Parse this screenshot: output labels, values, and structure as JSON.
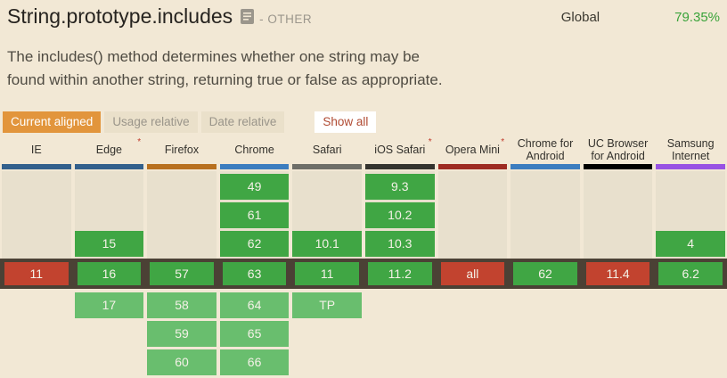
{
  "header": {
    "title": "String.prototype.includes",
    "category": "- OTHER",
    "global_label": "Global",
    "global_value": "79.35%"
  },
  "description": {
    "line1": "The includes() method determines whether one string may be",
    "line2": "found within another string, returning true or false as appropriate."
  },
  "toolbar": {
    "buttons": [
      {
        "label": "Current aligned",
        "active": true
      },
      {
        "label": "Usage relative",
        "active": false
      },
      {
        "label": "Date relative",
        "active": false
      }
    ],
    "show_all": "Show all"
  },
  "table": {
    "colors": {
      "supported": "#40a644",
      "unsupported": "#c2432f",
      "future": "#69be6e",
      "current_band": "#4b4135",
      "column_track": "#e8e0cd"
    },
    "columns": [
      {
        "name": "IE",
        "asterisk": false,
        "brand_color": "#33608c",
        "past": [
          null,
          null,
          null
        ],
        "current": {
          "label": "11",
          "status": "unsupported"
        },
        "future": [
          null,
          null,
          null
        ]
      },
      {
        "name": "Edge",
        "asterisk": true,
        "brand_color": "#33608c",
        "past": [
          null,
          null,
          "15"
        ],
        "current": {
          "label": "16",
          "status": "supported"
        },
        "future": [
          "17",
          null,
          null
        ]
      },
      {
        "name": "Firefox",
        "asterisk": false,
        "brand_color": "#b8701f",
        "past": [
          null,
          null,
          null
        ],
        "current": {
          "label": "57",
          "status": "supported"
        },
        "future": [
          "58",
          "59",
          "60"
        ]
      },
      {
        "name": "Chrome",
        "asterisk": false,
        "brand_color": "#3c7dbf",
        "past": [
          "49",
          "61",
          "62"
        ],
        "current": {
          "label": "63",
          "status": "supported"
        },
        "future": [
          "64",
          "65",
          "66"
        ]
      },
      {
        "name": "Safari",
        "asterisk": false,
        "brand_color": "#6e6e68",
        "past": [
          null,
          null,
          "10.1"
        ],
        "current": {
          "label": "11",
          "status": "supported"
        },
        "future": [
          "TP",
          null,
          null
        ]
      },
      {
        "name": "iOS Safari",
        "asterisk": true,
        "brand_color": "#34332e",
        "past": [
          "9.3",
          "10.2",
          "10.3"
        ],
        "current": {
          "label": "11.2",
          "status": "supported"
        },
        "future": [
          null,
          null,
          null
        ]
      },
      {
        "name": "Opera Mini",
        "asterisk": true,
        "brand_color": "#9e2b22",
        "past": [
          null,
          null,
          null
        ],
        "current": {
          "label": "all",
          "status": "unsupported"
        },
        "future": [
          null,
          null,
          null
        ]
      },
      {
        "name": "Chrome for Android",
        "asterisk": false,
        "brand_color": "#3c7dbf",
        "past": [
          null,
          null,
          null
        ],
        "current": {
          "label": "62",
          "status": "supported"
        },
        "future": [
          null,
          null,
          null
        ]
      },
      {
        "name": "UC Browser for Android",
        "asterisk": false,
        "brand_color": "#000000",
        "past": [
          null,
          null,
          null
        ],
        "current": {
          "label": "11.4",
          "status": "unsupported"
        },
        "future": [
          null,
          null,
          null
        ]
      },
      {
        "name": "Samsung Internet",
        "asterisk": false,
        "brand_color": "#9852e3",
        "past": [
          null,
          null,
          "4"
        ],
        "current": {
          "label": "6.2",
          "status": "supported"
        },
        "future": [
          null,
          null,
          null
        ]
      }
    ]
  }
}
